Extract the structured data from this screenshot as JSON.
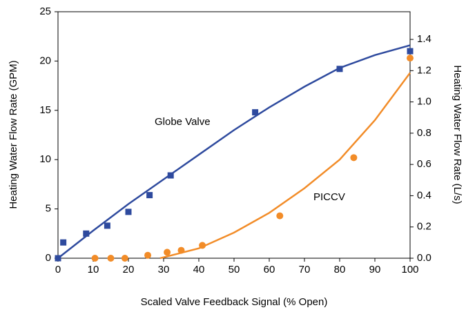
{
  "chart_data": {
    "type": "scatter",
    "xlabel": "Scaled Valve Feedback Signal (% Open)",
    "ylabel": "Heating Water Flow Rate (GPM)",
    "y2label": "Heating Water Flow Rate (L/s)",
    "xlim": [
      0,
      100
    ],
    "xticks": [
      0,
      10,
      20,
      30,
      40,
      50,
      60,
      70,
      80,
      90,
      100
    ],
    "ylim": [
      0,
      25
    ],
    "yticks": [
      0,
      5,
      10,
      15,
      20,
      25
    ],
    "y2lim": [
      0,
      1.577
    ],
    "y2ticks": [
      {
        "value": 0,
        "label": "0.0"
      },
      0.2,
      0.4,
      0.6,
      0.8,
      {
        "value": 1,
        "label": "1.0"
      },
      1.2,
      1.4
    ],
    "annotations": [
      "Globe Valve",
      "PICCV"
    ],
    "series": [
      {
        "mode": "markers",
        "marker": "square",
        "color": "#2e4a9e",
        "x": [
          0,
          1.5,
          8,
          14,
          20,
          26,
          32,
          56,
          80,
          100
        ],
        "values": [
          0,
          1.6,
          2.5,
          3.3,
          4.7,
          6.4,
          8.4,
          14.8,
          19.2,
          21
        ]
      },
      {
        "mode": "markers",
        "marker": "circle",
        "color": "#f28c28",
        "x": [
          10.5,
          15,
          19,
          25.5,
          31,
          35,
          41,
          63,
          84,
          100
        ],
        "values": [
          0,
          0,
          0,
          0.3,
          0.6,
          0.8,
          1.3,
          4.3,
          10.2,
          20.3
        ]
      },
      {
        "mode": "line",
        "color": "#2e4a9e",
        "x": [
          0,
          10,
          20,
          30,
          40,
          50,
          60,
          70,
          80,
          90,
          100
        ],
        "values": [
          0,
          2.8,
          5.5,
          8.0,
          10.5,
          13.0,
          15.3,
          17.4,
          19.3,
          20.6,
          21.6
        ]
      },
      {
        "mode": "line",
        "color": "#f28c28",
        "x": [
          29,
          40,
          50,
          60,
          70,
          80,
          90,
          100
        ],
        "values": [
          0,
          1.0,
          2.6,
          4.6,
          7.1,
          10.0,
          14.0,
          18.8
        ]
      }
    ]
  }
}
